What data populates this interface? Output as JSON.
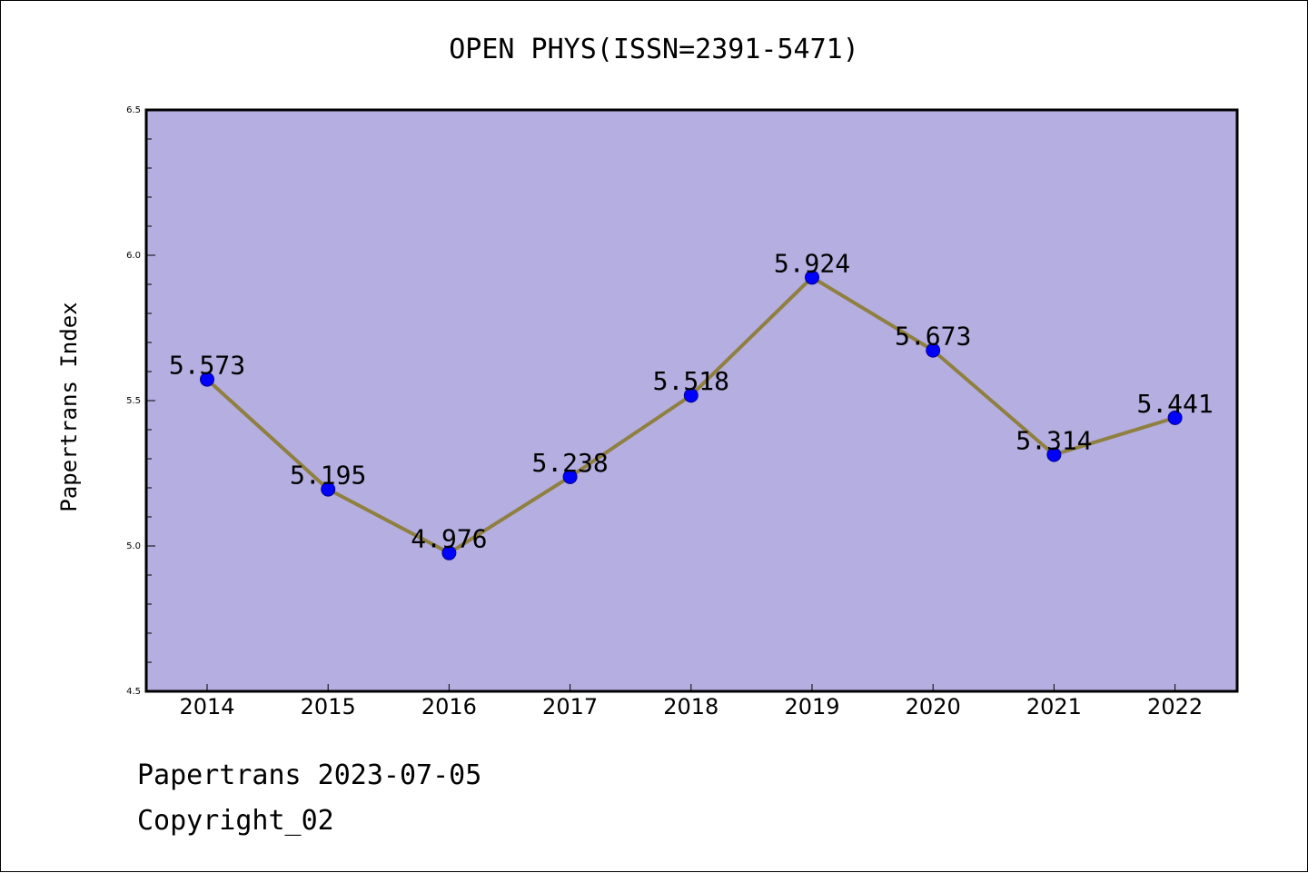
{
  "chart_data": {
    "type": "line",
    "title": "OPEN PHYS(ISSN=2391-5471)",
    "xlabel": "",
    "ylabel": "Papertrans Index",
    "categories": [
      "2014",
      "2015",
      "2016",
      "2017",
      "2018",
      "2019",
      "2020",
      "2021",
      "2022"
    ],
    "values": [
      5.573,
      5.195,
      4.976,
      5.238,
      5.518,
      5.924,
      5.673,
      5.314,
      5.441
    ],
    "data_labels": [
      "5.573",
      "5.195",
      "4.976",
      "5.238",
      "5.518",
      "5.924",
      "5.673",
      "5.314",
      "5.441"
    ],
    "ylim": [
      4.5,
      6.5
    ],
    "yticks": [
      "4.5",
      "5.0",
      "5.5",
      "6.0",
      "6.5"
    ],
    "grid": false,
    "colors": {
      "plot_background": "#b5aee1",
      "line": "#8f8040",
      "marker": "#0000ff",
      "marker_edge": "#00008b"
    }
  },
  "footer": {
    "line1": "Papertrans 2023-07-05",
    "line2": "Copyright_02"
  }
}
